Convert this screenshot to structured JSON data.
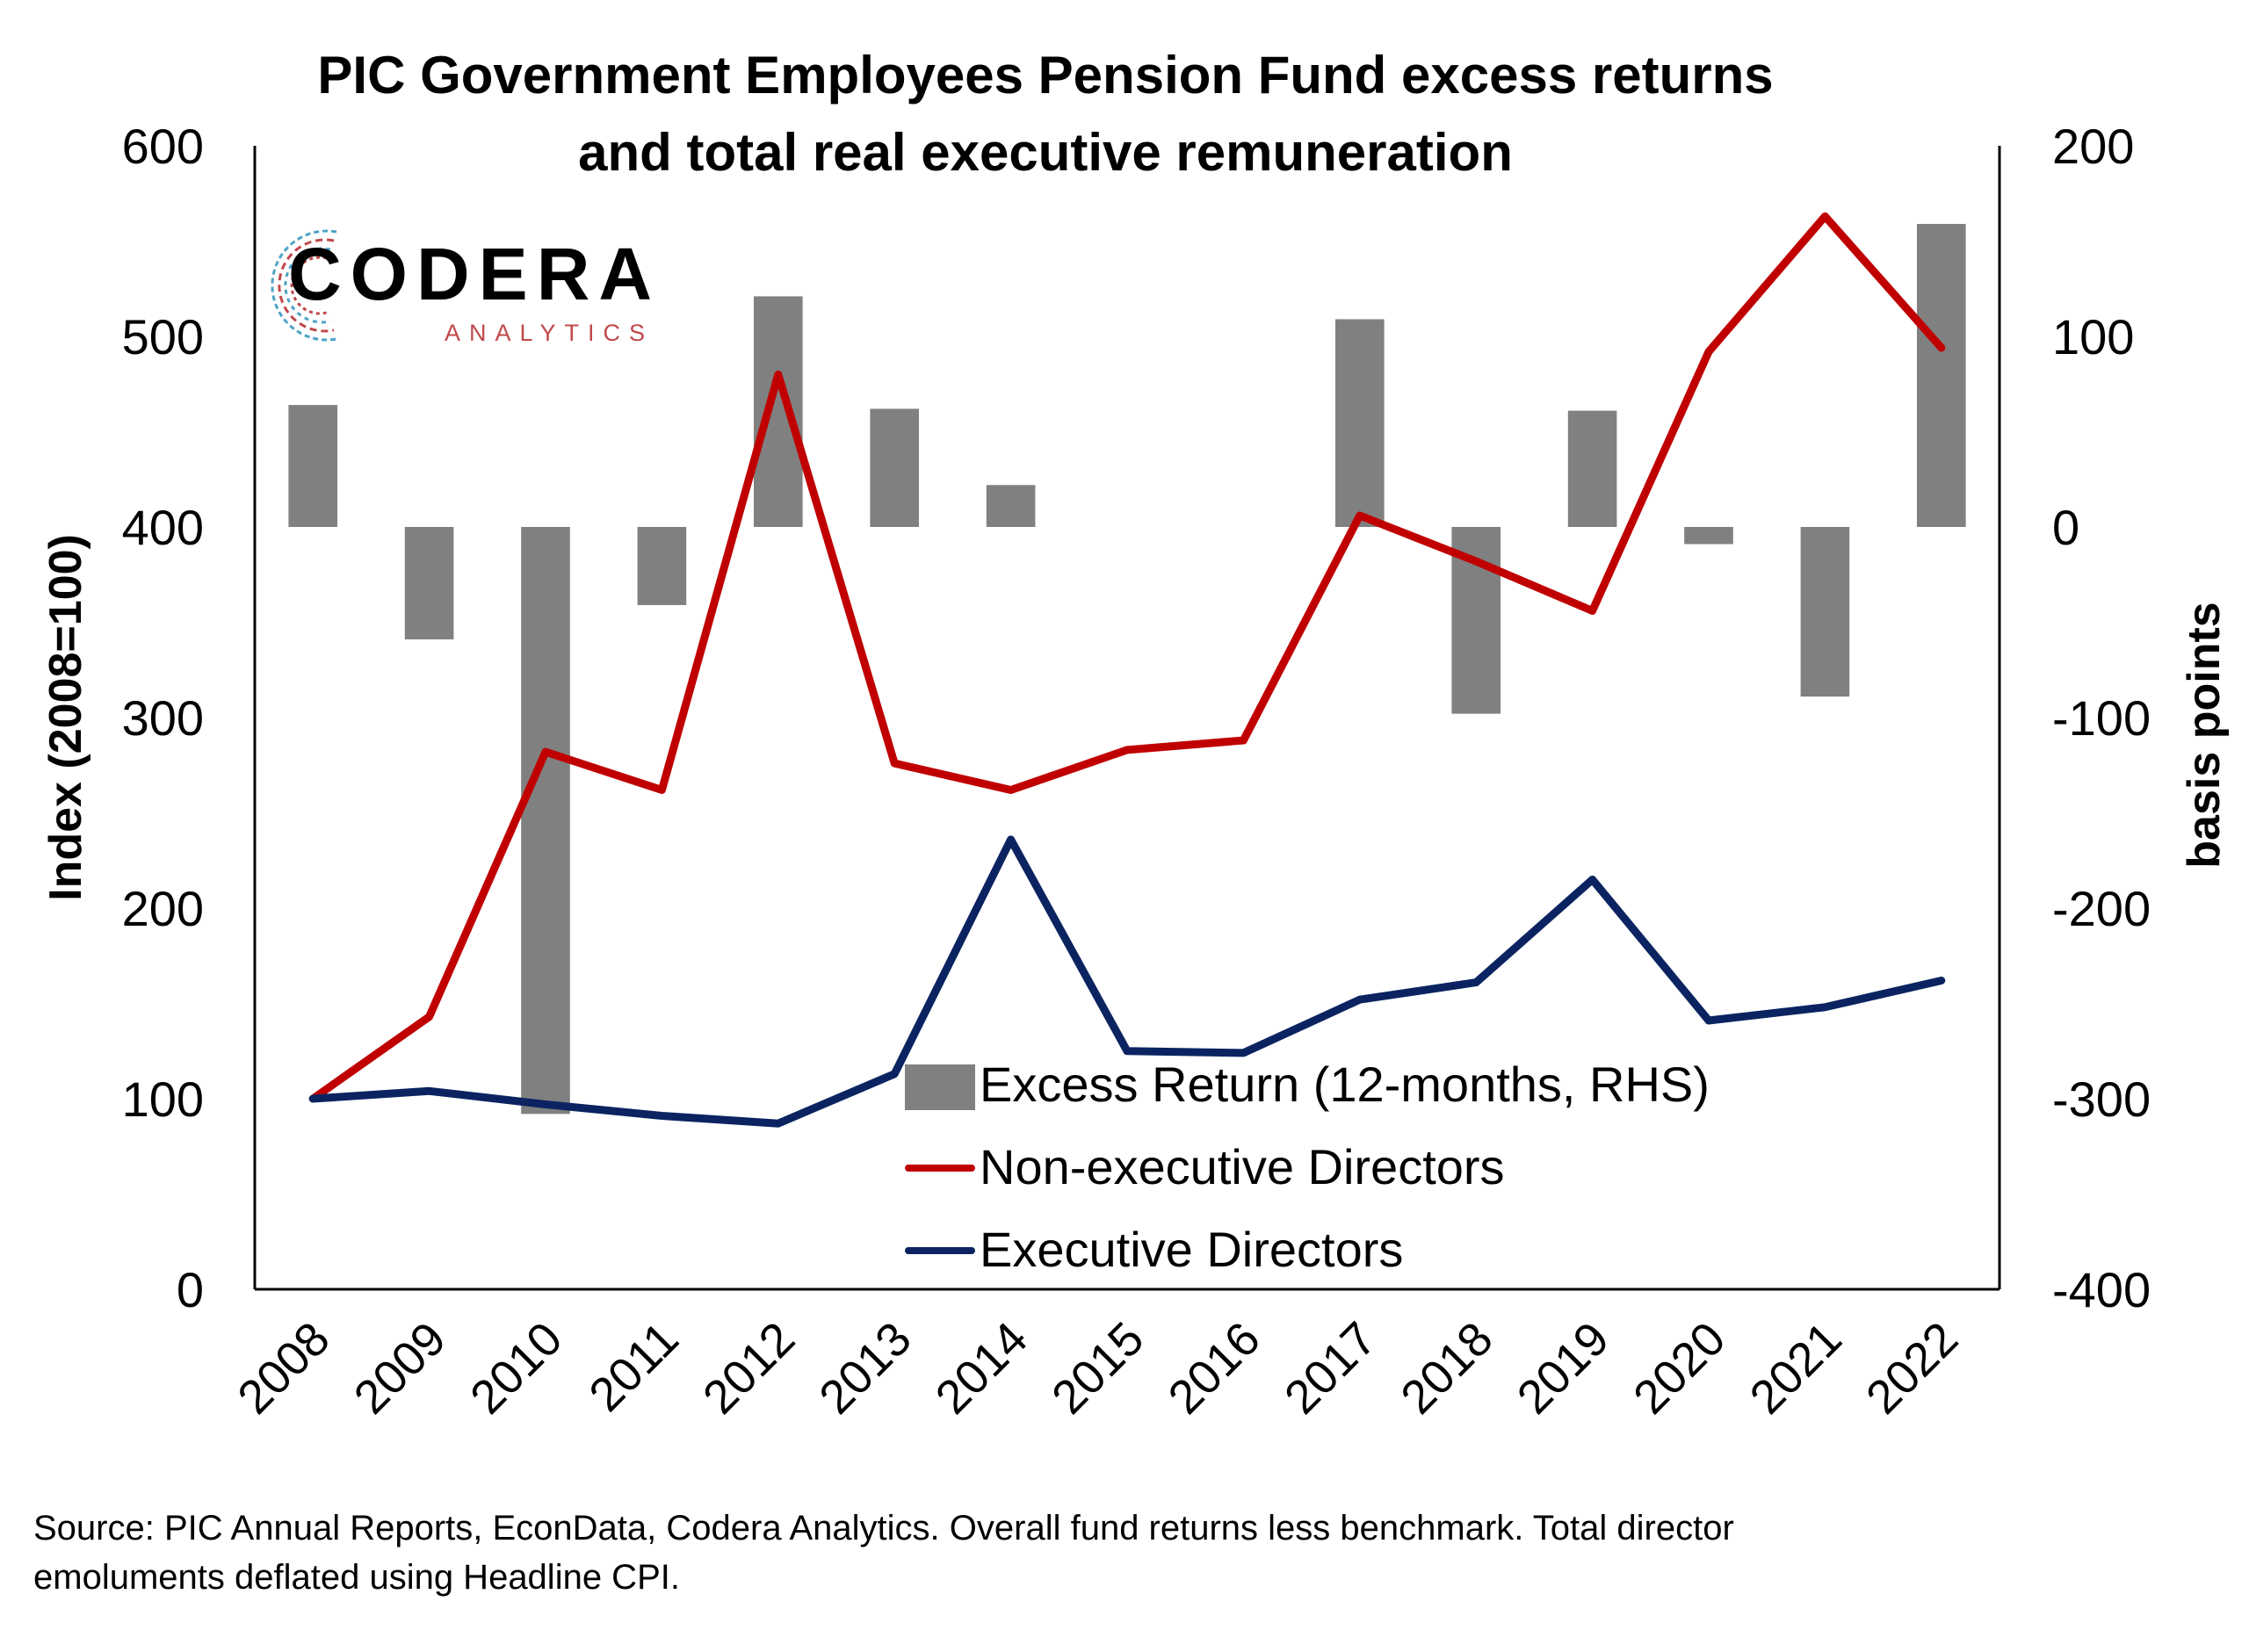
{
  "title_line1": "PIC Government Employees Pension Fund excess returns",
  "title_line2": "and total real executive remuneration",
  "logo": {
    "name": "CODERA",
    "sub": "ANALYTICS"
  },
  "source_line1": "Source: PIC Annual Reports, EconData, Codera Analytics. Overall fund returns less benchmark. Total director",
  "source_line2": "emoluments deflated using Headline CPI.",
  "colors": {
    "bars": "#808080",
    "non_exec": "#c00000",
    "exec": "#0b2461"
  },
  "chart_data": {
    "type": "bar+line",
    "categories": [
      "2008",
      "2009",
      "2010",
      "2011",
      "2012",
      "2013",
      "2014",
      "2015",
      "2016",
      "2017",
      "2018",
      "2019",
      "2020",
      "2021",
      "2022"
    ],
    "ylabel": "Index (2008=100)",
    "y2label": "basis points",
    "ylim": [
      0,
      600
    ],
    "yticks": [
      "0",
      "100",
      "200",
      "300",
      "400",
      "500",
      "600"
    ],
    "y2lim": [
      -400,
      200
    ],
    "y2ticks": [
      "-400",
      "-300",
      "-200",
      "-100",
      "0",
      "100",
      "200"
    ],
    "grid": false,
    "legend_position": "bottom-center",
    "series": [
      {
        "name": "Excess Return (12-months, RHS)",
        "type": "bar",
        "axis": "right",
        "values": [
          64,
          -59,
          -308,
          -41,
          121,
          62,
          22,
          null,
          null,
          109,
          -98,
          61,
          -9,
          -89,
          159
        ]
      },
      {
        "name": "Non-executive Directors",
        "type": "line",
        "axis": "left",
        "values": [
          100,
          143,
          282,
          262,
          480,
          276,
          262,
          283,
          288,
          406,
          382,
          356,
          492,
          563,
          494
        ]
      },
      {
        "name": "Executive Directors",
        "type": "line",
        "axis": "left",
        "values": [
          100,
          104,
          97,
          91,
          87,
          113,
          236,
          125,
          124,
          152,
          161,
          215,
          141,
          148,
          162
        ]
      }
    ]
  }
}
